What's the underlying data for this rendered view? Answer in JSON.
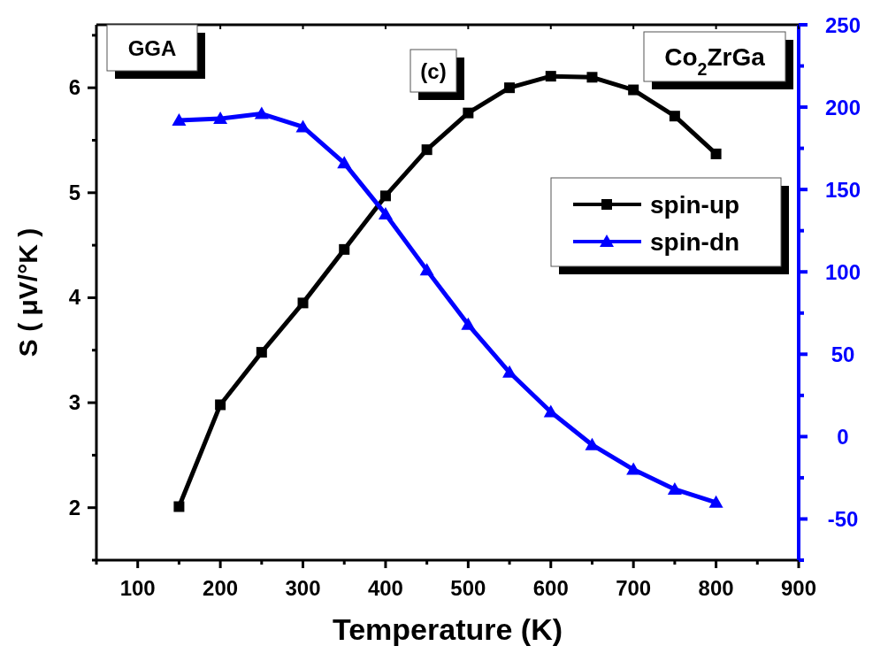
{
  "chart_data": {
    "type": "line",
    "xlabel": "Temperature (K)",
    "ylabel": "S ( μV/°K )",
    "annotations": [
      "GGA",
      "(c)",
      "Co$_{2}$ZrGa"
    ],
    "x": [
      150,
      200,
      250,
      300,
      350,
      400,
      450,
      500,
      550,
      600,
      650,
      700,
      750,
      800
    ],
    "xlim": [
      50,
      900
    ],
    "xticks": [
      100,
      200,
      300,
      400,
      500,
      600,
      700,
      800,
      900
    ],
    "ylim": [
      1.5,
      6.6
    ],
    "yticks": [
      2,
      3,
      4,
      5,
      6
    ],
    "y2lim": [
      -75,
      250
    ],
    "y2ticks": [
      -50,
      0,
      50,
      100,
      150,
      200,
      250
    ],
    "grid": false,
    "legend": "right",
    "line_style": "solid",
    "series": [
      {
        "name": "spin-up",
        "color": "#000000",
        "marker": "square",
        "values": [
          2.01,
          2.98,
          3.48,
          3.95,
          4.46,
          4.97,
          5.41,
          5.76,
          6.0,
          6.11,
          6.1,
          5.98,
          5.73,
          5.37
        ]
      },
      {
        "name": "spin-dn",
        "color": "#0000ff",
        "marker": "triangle",
        "axis": "y2",
        "values": [
          192,
          193,
          196,
          188,
          166,
          135,
          101,
          68,
          39,
          15,
          -5,
          -20,
          -32,
          -40
        ]
      }
    ]
  }
}
